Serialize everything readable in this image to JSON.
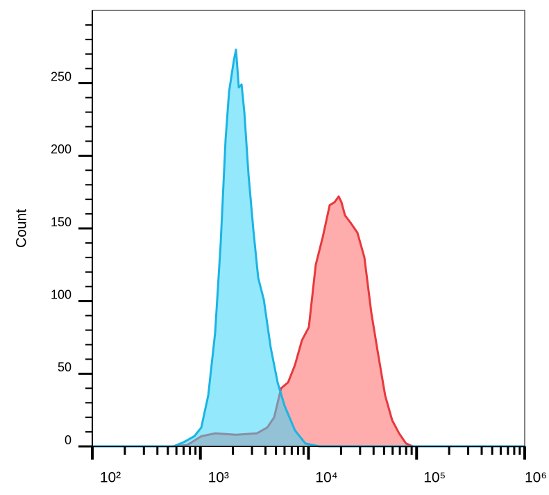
{
  "chart_data": {
    "type": "area",
    "y_label": "Count",
    "log_x": true,
    "xlim": [
      100,
      1000000
    ],
    "ylim": [
      0,
      300
    ],
    "xticks": [
      {
        "value": 100,
        "label": "10²"
      },
      {
        "value": 1000,
        "label": "10³"
      },
      {
        "value": 10000,
        "label": "10⁴"
      },
      {
        "value": 100000,
        "label": "10⁵"
      },
      {
        "value": 1000000,
        "label": "10⁶"
      }
    ],
    "xminorticks": [
      200,
      300,
      400,
      500,
      600,
      700,
      800,
      900,
      2000,
      3000,
      4000,
      5000,
      6000,
      7000,
      8000,
      9000,
      20000,
      30000,
      40000,
      50000,
      60000,
      70000,
      80000,
      90000,
      200000,
      300000,
      400000,
      500000,
      600000,
      700000,
      800000,
      900000
    ],
    "yticks": [
      0,
      50,
      100,
      150,
      200,
      250
    ],
    "yminorticks": [
      10,
      20,
      30,
      40,
      60,
      70,
      80,
      90,
      110,
      120,
      130,
      140,
      160,
      170,
      180,
      190,
      210,
      220,
      230,
      240,
      260,
      270,
      280,
      290
    ],
    "series": [
      {
        "color": "#e8383c",
        "fill": "#ff8080",
        "x": [
          100,
          563,
          758,
          1019,
          1368,
          2135,
          3327,
          4150,
          4811,
          5574,
          6467,
          7493,
          8690,
          10070,
          11670,
          13540,
          15700,
          17410,
          19020,
          20180,
          21740,
          24450,
          28360,
          32890,
          38110,
          44170,
          51190,
          59410,
          68870,
          79830,
          92520,
          1000000
        ],
        "values": [
          0,
          0,
          1,
          7,
          9,
          8,
          9,
          13,
          20,
          40,
          44,
          56,
          73,
          82,
          125,
          144,
          166,
          168,
          172,
          168,
          159,
          154,
          147,
          130,
          92,
          63,
          35,
          18,
          9,
          2,
          0,
          0
        ]
      },
      {
        "color": "#1ab4e4",
        "fill": "#3ad6fa",
        "x": [
          100,
          563,
          705,
          879,
          1019,
          1181,
          1368,
          1541,
          1709,
          1841,
          2042,
          2135,
          2264,
          2403,
          2549,
          2786,
          3089,
          3425,
          3858,
          4470,
          5180,
          6003,
          7493,
          9355,
          12590,
          1000000
        ],
        "values": [
          0,
          0,
          3,
          7,
          13,
          35,
          78,
          140,
          211,
          244,
          266,
          273,
          247,
          249,
          230,
          187,
          149,
          116,
          101,
          68,
          44,
          28,
          11,
          2,
          0,
          0
        ]
      }
    ]
  }
}
